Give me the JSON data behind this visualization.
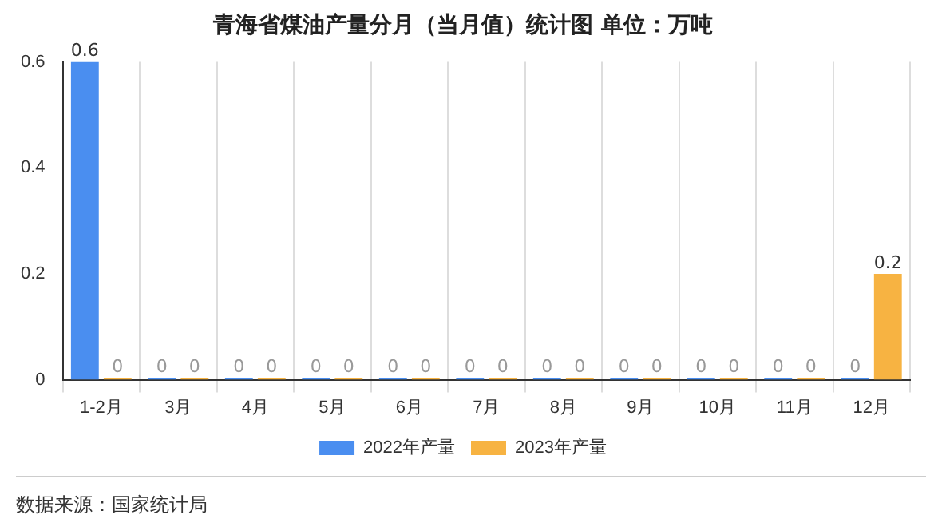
{
  "chart_data": {
    "type": "bar",
    "title": "青海省煤油产量分月（当月值）统计图 单位：万吨",
    "categories": [
      "1-2月",
      "3月",
      "4月",
      "5月",
      "6月",
      "7月",
      "8月",
      "9月",
      "10月",
      "11月",
      "12月"
    ],
    "series": [
      {
        "name": "2022年产量",
        "color": "#4a8ef0",
        "values": [
          0.6,
          0,
          0,
          0,
          0,
          0,
          0,
          0,
          0,
          0,
          0
        ]
      },
      {
        "name": "2023年产量",
        "color": "#f7b342",
        "values": [
          0,
          0,
          0,
          0,
          0,
          0,
          0,
          0,
          0,
          0,
          0.2
        ]
      }
    ],
    "ylim": [
      0,
      0.6
    ],
    "yticks": [
      0,
      0.2,
      0.4,
      0.6
    ],
    "grid": "x",
    "legend": "bottom",
    "data_labels": true,
    "annotations": [
      "数据来源：国家统计局"
    ]
  }
}
